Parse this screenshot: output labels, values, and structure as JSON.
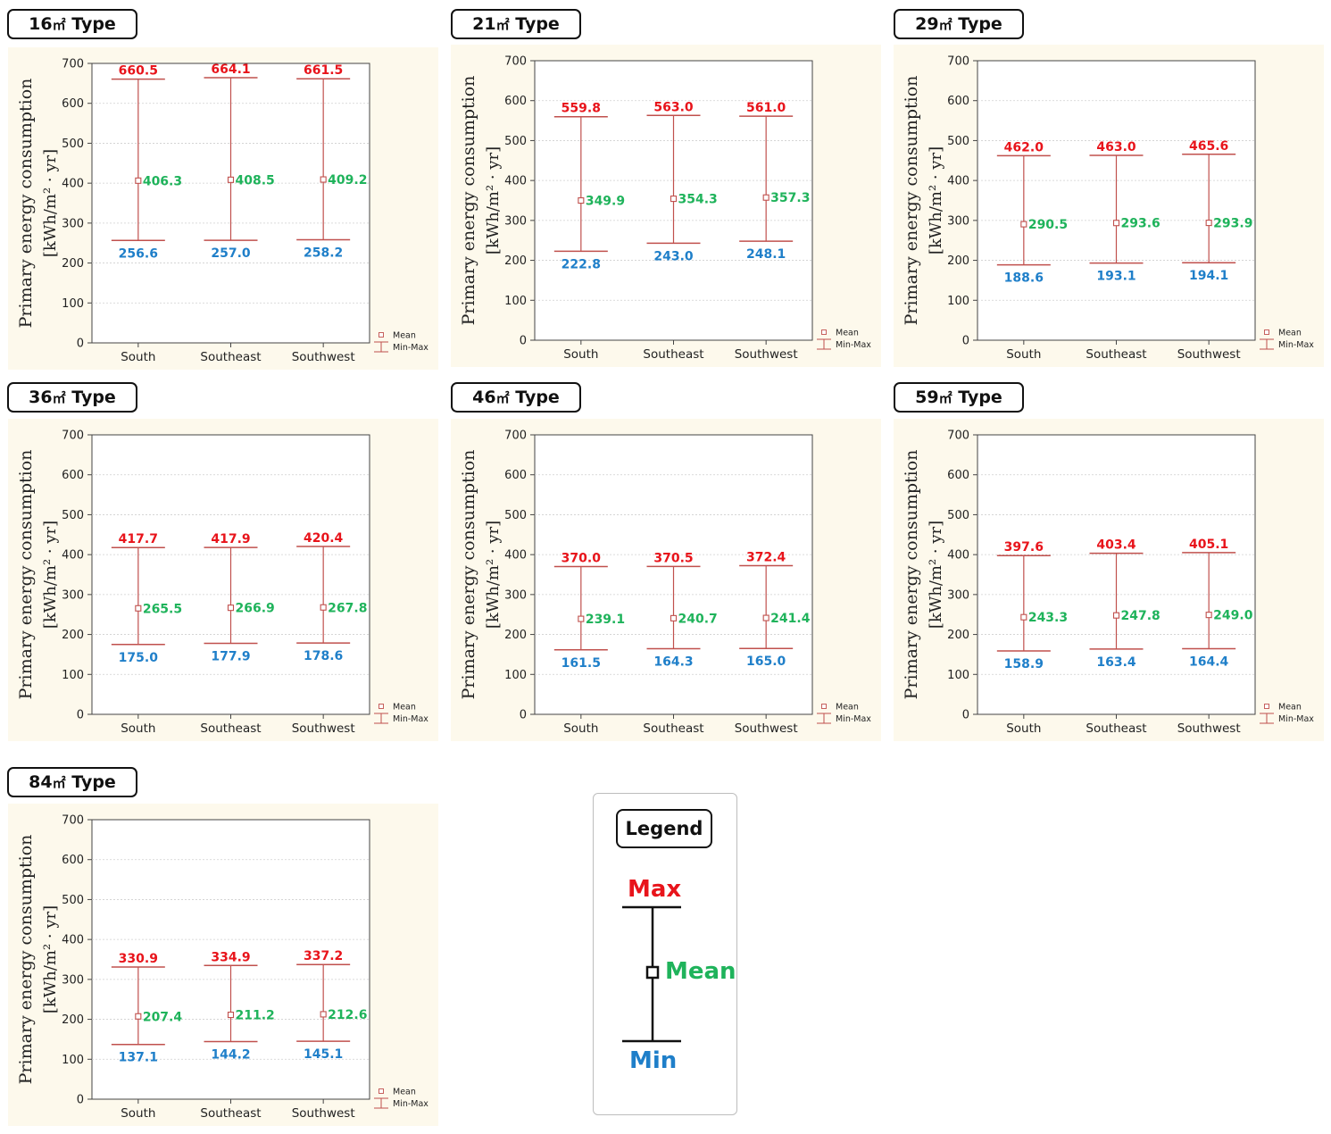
{
  "title_unit_symbol": "㎡",
  "title_suffix": " Type",
  "colors": {
    "max": "#e8141b",
    "mean": "#1fb35b",
    "min": "#1f7fc9",
    "whisker": "#c0504d"
  },
  "chart_data": [
    {
      "type": "error-bar",
      "area": "16",
      "categories": [
        "South",
        "Southeast",
        "Southwest"
      ],
      "max": [
        660.5,
        664.1,
        661.5
      ],
      "mean": [
        406.3,
        408.5,
        409.2
      ],
      "min": [
        256.6,
        257.0,
        258.2
      ],
      "ylabel": "Primary energy consumption",
      "yunit": "[kWh/m² · yr]",
      "ylim": [
        0,
        700
      ],
      "yticks": [
        0,
        100,
        200,
        300,
        400,
        500,
        600,
        700
      ],
      "legend": [
        "Mean",
        "Min-Max"
      ],
      "legend_position": "bottom-right",
      "grid": true
    },
    {
      "type": "error-bar",
      "area": "21",
      "categories": [
        "South",
        "Southeast",
        "Southwest"
      ],
      "max": [
        559.8,
        563.0,
        561.0
      ],
      "mean": [
        349.9,
        354.3,
        357.3
      ],
      "min": [
        222.8,
        243.0,
        248.1
      ],
      "ylabel": "Primary energy consumption",
      "yunit": "[kWh/m² · yr]",
      "ylim": [
        0,
        700
      ],
      "yticks": [
        0,
        100,
        200,
        300,
        400,
        500,
        600,
        700
      ],
      "legend": [
        "Mean",
        "Min-Max"
      ],
      "legend_position": "bottom-right",
      "grid": true
    },
    {
      "type": "error-bar",
      "area": "29",
      "categories": [
        "South",
        "Southeast",
        "Southwest"
      ],
      "max": [
        462.0,
        463.0,
        465.6
      ],
      "mean": [
        290.5,
        293.6,
        293.9
      ],
      "min": [
        188.6,
        193.1,
        194.1
      ],
      "ylabel": "Primary energy consumption",
      "yunit": "[kWh/m² · yr]",
      "ylim": [
        0,
        700
      ],
      "yticks": [
        0,
        100,
        200,
        300,
        400,
        500,
        600,
        700
      ],
      "legend": [
        "Mean",
        "Min-Max"
      ],
      "legend_position": "bottom-right",
      "grid": true
    },
    {
      "type": "error-bar",
      "area": "36",
      "categories": [
        "South",
        "Southeast",
        "Southwest"
      ],
      "max": [
        417.7,
        417.9,
        420.4
      ],
      "mean": [
        265.5,
        266.9,
        267.8
      ],
      "min": [
        175.0,
        177.9,
        178.6
      ],
      "ylabel": "Primary energy consumption",
      "yunit": "[kWh/m² · yr]",
      "ylim": [
        0,
        700
      ],
      "yticks": [
        0,
        100,
        200,
        300,
        400,
        500,
        600,
        700
      ],
      "legend": [
        "Mean",
        "Min-Max"
      ],
      "legend_position": "bottom-right",
      "grid": true
    },
    {
      "type": "error-bar",
      "area": "46",
      "categories": [
        "South",
        "Southeast",
        "Southwest"
      ],
      "max": [
        370.0,
        370.5,
        372.4
      ],
      "mean": [
        239.1,
        240.7,
        241.4
      ],
      "min": [
        161.5,
        164.3,
        165.0
      ],
      "ylabel": "Primary energy consumption",
      "yunit": "[kWh/m² · yr]",
      "ylim": [
        0,
        700
      ],
      "yticks": [
        0,
        100,
        200,
        300,
        400,
        500,
        600,
        700
      ],
      "legend": [
        "Mean",
        "Min-Max"
      ],
      "legend_position": "bottom-right",
      "grid": true
    },
    {
      "type": "error-bar",
      "area": "59",
      "categories": [
        "South",
        "Southeast",
        "Southwest"
      ],
      "max": [
        397.6,
        403.4,
        405.1
      ],
      "mean": [
        243.3,
        247.8,
        249.0
      ],
      "min": [
        158.9,
        163.4,
        164.4
      ],
      "ylabel": "Primary energy consumption",
      "yunit": "[kWh/m² · yr]",
      "ylim": [
        0,
        700
      ],
      "yticks": [
        0,
        100,
        200,
        300,
        400,
        500,
        600,
        700
      ],
      "legend": [
        "Mean",
        "Min-Max"
      ],
      "legend_position": "bottom-right",
      "grid": true
    },
    {
      "type": "error-bar",
      "area": "84",
      "categories": [
        "South",
        "Southeast",
        "Southwest"
      ],
      "max": [
        330.9,
        334.9,
        337.2
      ],
      "mean": [
        207.4,
        211.2,
        212.6
      ],
      "min": [
        137.1,
        144.2,
        145.1
      ],
      "ylabel": "Primary energy consumption",
      "yunit": "[kWh/m² · yr]",
      "ylim": [
        0,
        700
      ],
      "yticks": [
        0,
        100,
        200,
        300,
        400,
        500,
        600,
        700
      ],
      "legend": [
        "Mean",
        "Min-Max"
      ],
      "legend_position": "bottom-right",
      "grid": true
    }
  ],
  "legend_card": {
    "title": "Legend",
    "max_label": "Max",
    "mean_label": "Mean",
    "min_label": "Min"
  }
}
